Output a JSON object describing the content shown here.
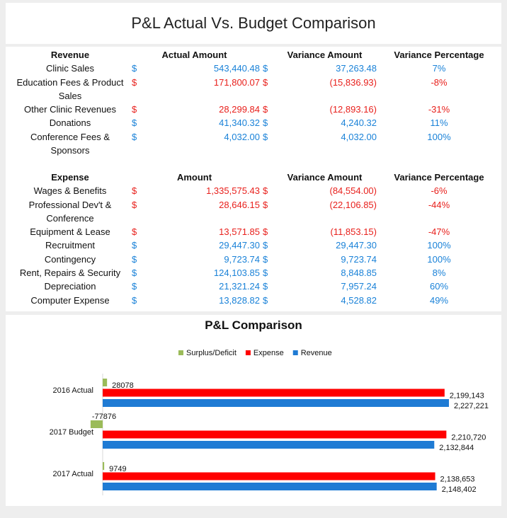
{
  "title": "P&L Actual Vs. Budget Comparison",
  "currency": "$",
  "revenue": {
    "headers": [
      "Revenue",
      "Actual Amount",
      "Variance Amount",
      "Variance Percentage"
    ],
    "rows": [
      {
        "label": "Clinic Sales",
        "actual": "543,440.48",
        "variance": "37,263.48",
        "percentage": "7%",
        "color": "#1a82d8"
      },
      {
        "label": "Education Fees & Product Sales",
        "actual": "171,800.07",
        "variance": "(15,836.93)",
        "percentage": "-8%",
        "color": "#e8201c"
      },
      {
        "label": "Other Clinic Revenues",
        "actual": "28,299.84",
        "variance": "(12,893.16)",
        "percentage": "-31%",
        "color": "#e8201c"
      },
      {
        "label": "Donations",
        "actual": "41,340.32",
        "variance": "4,240.32",
        "percentage": "11%",
        "color": "#1a82d8"
      },
      {
        "label": "Conference Fees & Sponsors",
        "actual": "4,032.00",
        "variance": "4,032.00",
        "percentage": "100%",
        "color": "#1a82d8"
      }
    ]
  },
  "expense": {
    "headers": [
      "Expense",
      "Amount",
      "Variance Amount",
      "Variance Percentage"
    ],
    "rows": [
      {
        "label": "Wages & Benefits",
        "actual": "1,335,575.43",
        "variance": "(84,554.00)",
        "percentage": "-6%",
        "color": "#e8201c"
      },
      {
        "label": "Professional Dev't & Conference",
        "actual": "28,646.15",
        "variance": "(22,106.85)",
        "percentage": "-44%",
        "color": "#e8201c"
      },
      {
        "label": "Equipment & Lease",
        "actual": "13,571.85",
        "variance": "(11,853.15)",
        "percentage": "-47%",
        "color": "#e8201c"
      },
      {
        "label": "Recruitment",
        "actual": "29,447.30",
        "variance": "29,447.30",
        "percentage": "100%",
        "color": "#1a82d8"
      },
      {
        "label": "Contingency",
        "actual": "9,723.74",
        "variance": "9,723.74",
        "percentage": "100%",
        "color": "#1a82d8"
      },
      {
        "label": "Rent, Repairs & Security",
        "actual": "124,103.85",
        "variance": "8,848.85",
        "percentage": "8%",
        "color": "#1a82d8"
      },
      {
        "label": "Depreciation",
        "actual": "21,321.24",
        "variance": "7,957.24",
        "percentage": "60%",
        "color": "#1a82d8"
      },
      {
        "label": "Computer Expense",
        "actual": "13,828.82",
        "variance": "4,528.82",
        "percentage": "49%",
        "color": "#1a82d8"
      }
    ]
  },
  "chart_data": {
    "type": "hbar",
    "title": "P&L Comparison",
    "categories": [
      "2016 Actual",
      "2017 Budget",
      "2017 Actual"
    ],
    "series": [
      {
        "name": "Surplus/Deficit",
        "color": "#9bbb59",
        "values": [
          28078,
          -77876,
          9749
        ]
      },
      {
        "name": "Expense",
        "color": "#ff0000",
        "values": [
          2199143,
          2210720,
          2138653
        ],
        "value_labels": [
          "2,199,143",
          "2,210,720",
          "2,138,653"
        ]
      },
      {
        "name": "Revenue",
        "color": "#1f7bd4",
        "values": [
          2227221,
          2132844,
          2148402
        ],
        "value_labels": [
          "2,227,221",
          "2,132,844",
          "2,148,402"
        ]
      }
    ]
  }
}
